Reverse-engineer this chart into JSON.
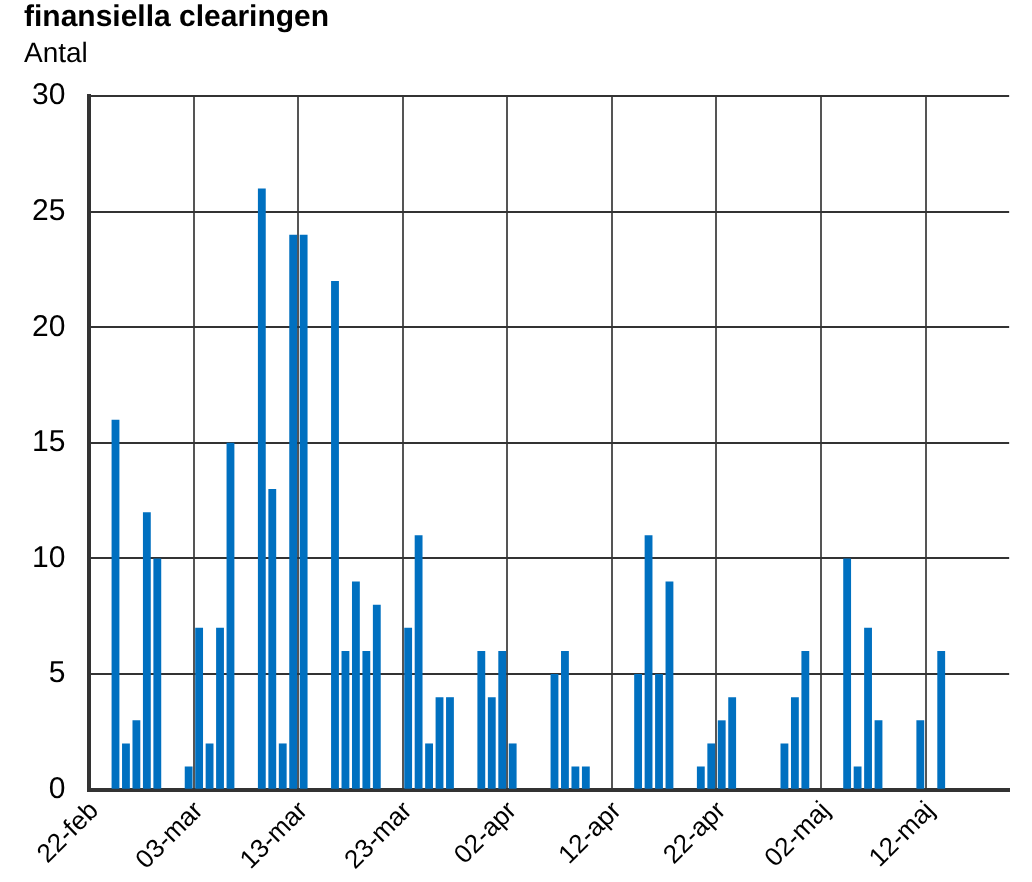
{
  "chart_data": {
    "type": "bar",
    "title": "finansiella clearingen",
    "ylabel": "Antal",
    "categories": [
      "22-feb",
      null,
      null,
      null,
      null,
      null,
      null,
      null,
      null,
      null,
      "03-mar",
      null,
      null,
      null,
      null,
      null,
      null,
      null,
      null,
      null,
      "13-mar",
      null,
      null,
      null,
      null,
      null,
      null,
      null,
      null,
      null,
      "23-mar",
      null,
      null,
      null,
      null,
      null,
      null,
      null,
      null,
      null,
      "02-apr",
      null,
      null,
      null,
      null,
      null,
      null,
      null,
      null,
      null,
      "12-apr",
      null,
      null,
      null,
      null,
      null,
      null,
      null,
      null,
      null,
      "22-apr",
      null,
      null,
      null,
      null,
      null,
      null,
      null,
      null,
      null,
      "02-maj",
      null,
      null,
      null,
      null,
      null,
      null,
      null,
      null,
      null,
      "12-maj",
      null,
      null,
      null,
      null,
      null,
      null,
      null
    ],
    "values": [
      null,
      null,
      16,
      2,
      3,
      12,
      10,
      null,
      null,
      1,
      7,
      2,
      7,
      15,
      null,
      null,
      26,
      13,
      2,
      24,
      24,
      null,
      null,
      22,
      6,
      9,
      6,
      8,
      null,
      null,
      7,
      11,
      2,
      4,
      4,
      null,
      null,
      6,
      4,
      6,
      2,
      null,
      null,
      null,
      5,
      6,
      1,
      1,
      null,
      null,
      null,
      null,
      5,
      11,
      5,
      9,
      null,
      null,
      1,
      2,
      3,
      4,
      null,
      null,
      null,
      null,
      2,
      4,
      6,
      null,
      null,
      null,
      10,
      1,
      7,
      3,
      null,
      null,
      null,
      3,
      null,
      6,
      null,
      null,
      null,
      null,
      null,
      null
    ],
    "color": "#0070c0",
    "ylim": [
      0,
      30
    ],
    "yticks": [
      0,
      5,
      10,
      15,
      20,
      25,
      30
    ],
    "grid": true
  }
}
